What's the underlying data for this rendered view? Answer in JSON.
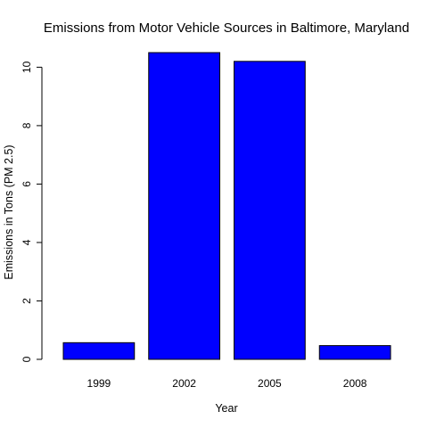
{
  "chart_data": {
    "type": "bar",
    "title": "Emissions from Motor Vehicle Sources in Baltimore, Maryland",
    "xlabel": "Year",
    "ylabel": "Emissions in Tons (PM 2.5)",
    "categories": [
      "1999",
      "2002",
      "2005",
      "2008"
    ],
    "values": [
      0.57,
      10.5,
      10.2,
      0.47
    ],
    "ylim": [
      0,
      10.5
    ],
    "yticks": [
      "0",
      "2",
      "4",
      "6",
      "8",
      "10"
    ],
    "bar_color": "#0000ff",
    "bar_border": "#000000",
    "grid": false,
    "legend": "none"
  }
}
